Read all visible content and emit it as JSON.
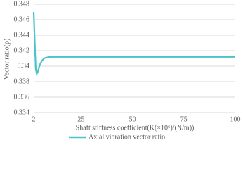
{
  "chart_data": {
    "type": "line",
    "x_label": "Shaft stiffness coefficient(K(×10⁶)/(N/m))",
    "y_label": "Vector ratio(ρ)",
    "x": [
      2,
      2.5,
      3,
      3.5,
      4,
      5,
      6,
      7,
      8,
      10,
      15,
      25,
      50,
      75,
      100
    ],
    "series": [
      {
        "name": "Axial vibration vector ratio",
        "color": "#4cc3c8",
        "values": [
          0.347,
          0.3432,
          0.3396,
          0.339,
          0.3393,
          0.3402,
          0.3407,
          0.341,
          0.3411,
          0.3412,
          0.3412,
          0.3412,
          0.3412,
          0.3412,
          0.3412
        ]
      }
    ],
    "xlim": [
      2,
      100
    ],
    "xticks": [
      2,
      25,
      50,
      75,
      100
    ],
    "ylim": [
      0.334,
      0.348
    ],
    "yticks": [
      0.334,
      0.336,
      0.338,
      0.34,
      0.342,
      0.344,
      0.346,
      0.348
    ],
    "grid": true,
    "legend": "bottom"
  }
}
